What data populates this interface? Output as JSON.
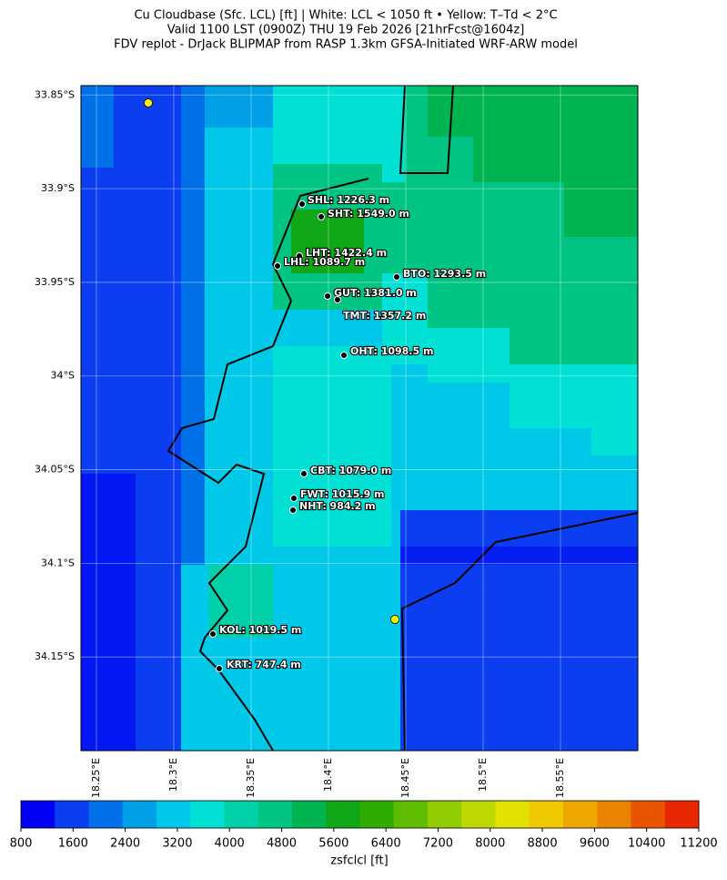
{
  "chart_data": {
    "type": "map",
    "title_lines": [
      "Cu Cloudbase (Sfc. LCL) [ft]  |  White: LCL < 1050 ft • Yellow: T–Td < 2°C",
      "Valid 1100 LST (0900Z) THU 19 Feb 2026 [21hrFcst@1604z]",
      "FDV replot - DrJack BLIPMAP from RASP 1.3km GFSA-Initiated WRF-ARW model"
    ],
    "ylim": [
      -33.845,
      -34.2
    ],
    "yticks": [
      {
        "value": -33.85,
        "label": "33.85°S"
      },
      {
        "value": -33.9,
        "label": "33.9°S"
      },
      {
        "value": -33.95,
        "label": "33.95°S"
      },
      {
        "value": -34.0,
        "label": "34°S"
      },
      {
        "value": -34.05,
        "label": "34.05°S"
      },
      {
        "value": -34.1,
        "label": "34.1°S"
      },
      {
        "value": -34.15,
        "label": "34.15°S"
      }
    ],
    "xlim": [
      18.24,
      18.6
    ],
    "xticks": [
      {
        "value": 18.25,
        "label": "18.25°E"
      },
      {
        "value": 18.3,
        "label": "18.3°E"
      },
      {
        "value": 18.35,
        "label": "18.35°E"
      },
      {
        "value": 18.4,
        "label": "18.4°E"
      },
      {
        "value": 18.45,
        "label": "18.45°E"
      },
      {
        "value": 18.5,
        "label": "18.5°E"
      },
      {
        "value": 18.55,
        "label": "18.55°E"
      }
    ],
    "stations": [
      "SHL: 1226.3 m",
      "SHT: 1549.0 m",
      "LHT: 1422.4 m",
      "LHL: 1089.7 m",
      "BTO: 1293.5 m",
      "GUT: 1381.0 m",
      "TMT: 1357.2 m",
      "OHT: 1098.5 m",
      "CBT: 1079.0 m",
      "FWT: 1015.9 m",
      "NHT: 984.2 m",
      "KOL: 1019.5 m",
      "KRT: 747.4 m"
    ],
    "colorbar": {
      "label": "zsfclcl [ft]",
      "lim": [
        800,
        11200
      ],
      "ticks": [
        800,
        1600,
        2400,
        3200,
        4000,
        4800,
        5600,
        6400,
        7200,
        8000,
        8800,
        9600,
        10400,
        11200
      ],
      "colors": [
        "#0000f5",
        "#0a3ef0",
        "#0070e8",
        "#00a0e6",
        "#00c8e8",
        "#00e0d4",
        "#00d0a8",
        "#00c484",
        "#00b450",
        "#10a818",
        "#30ac00",
        "#60bc00",
        "#90cc00",
        "#bcd800",
        "#e4e000",
        "#f0c800",
        "#eca800",
        "#ea8400",
        "#e85400",
        "#e82800"
      ]
    }
  }
}
